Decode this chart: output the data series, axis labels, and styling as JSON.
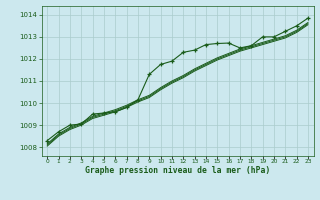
{
  "title": "Graphe pression niveau de la mer (hPa)",
  "hours": [
    0,
    1,
    2,
    3,
    4,
    5,
    6,
    7,
    8,
    9,
    10,
    11,
    12,
    13,
    14,
    15,
    16,
    17,
    18,
    19,
    20,
    21,
    22,
    23
  ],
  "ylim": [
    1007.6,
    1014.4
  ],
  "yticks": [
    1008,
    1009,
    1010,
    1011,
    1012,
    1013,
    1014
  ],
  "bg_color": "#cce8ee",
  "grid_color": "#aacccc",
  "line_color": "#1a5c1a",
  "main_line": [
    1008.3,
    1008.7,
    1009.0,
    1009.05,
    1009.5,
    1009.55,
    1009.6,
    1009.8,
    1010.15,
    1011.3,
    1011.75,
    1011.9,
    1012.3,
    1012.4,
    1012.65,
    1012.7,
    1012.72,
    1012.5,
    1012.6,
    1013.0,
    1013.0,
    1013.25,
    1013.5,
    1013.85
  ],
  "smooth1": [
    1008.1,
    1008.55,
    1008.85,
    1009.05,
    1009.35,
    1009.5,
    1009.65,
    1009.85,
    1010.1,
    1010.3,
    1010.65,
    1010.95,
    1011.2,
    1011.5,
    1011.75,
    1012.0,
    1012.2,
    1012.4,
    1012.55,
    1012.7,
    1012.85,
    1013.0,
    1013.25,
    1013.6
  ],
  "smooth2": [
    1008.15,
    1008.6,
    1008.9,
    1009.1,
    1009.4,
    1009.55,
    1009.7,
    1009.9,
    1010.15,
    1010.35,
    1010.7,
    1011.0,
    1011.25,
    1011.55,
    1011.8,
    1012.05,
    1012.25,
    1012.45,
    1012.6,
    1012.75,
    1012.9,
    1013.05,
    1013.3,
    1013.65
  ],
  "smooth3": [
    1008.05,
    1008.5,
    1008.8,
    1009.0,
    1009.3,
    1009.45,
    1009.6,
    1009.8,
    1010.05,
    1010.25,
    1010.6,
    1010.9,
    1011.15,
    1011.45,
    1011.7,
    1011.95,
    1012.15,
    1012.35,
    1012.5,
    1012.65,
    1012.8,
    1012.95,
    1013.2,
    1013.55
  ]
}
